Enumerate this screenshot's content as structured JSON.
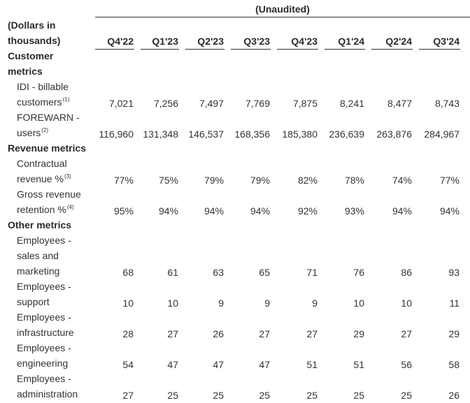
{
  "unaudited_label": "(Unaudited)",
  "corner_label": [
    "(Dollars in",
    "thousands)"
  ],
  "periods": [
    "Q4'22",
    "Q1'23",
    "Q2'23",
    "Q3'23",
    "Q4'23",
    "Q1'24",
    "Q2'24",
    "Q3'24"
  ],
  "sections": [
    {
      "title": [
        "Customer",
        "metrics"
      ],
      "rows": [
        {
          "label": [
            "IDI - billable",
            "customers"
          ],
          "footnote": "(1)",
          "values": [
            "7,021",
            "7,256",
            "7,497",
            "7,769",
            "7,875",
            "8,241",
            "8,477",
            "8,743"
          ]
        },
        {
          "label": [
            "FOREWARN -",
            "users"
          ],
          "footnote": "(2)",
          "values": [
            "116,960",
            "131,348",
            "146,537",
            "168,356",
            "185,380",
            "236,639",
            "263,876",
            "284,967"
          ]
        }
      ]
    },
    {
      "title": [
        "Revenue metrics"
      ],
      "rows": [
        {
          "label": [
            "Contractual",
            "revenue %"
          ],
          "footnote": "(3)",
          "values": [
            "77%",
            "75%",
            "79%",
            "79%",
            "82%",
            "78%",
            "74%",
            "77%"
          ]
        },
        {
          "label": [
            "Gross revenue",
            "retention %"
          ],
          "footnote": "(4)",
          "values": [
            "95%",
            "94%",
            "94%",
            "94%",
            "92%",
            "93%",
            "94%",
            "94%"
          ]
        }
      ]
    },
    {
      "title": [
        "Other metrics"
      ],
      "rows": [
        {
          "label": [
            "Employees -",
            "sales and",
            "marketing"
          ],
          "footnote": "",
          "values": [
            "68",
            "61",
            "63",
            "65",
            "71",
            "76",
            "86",
            "93"
          ]
        },
        {
          "label": [
            "Employees -",
            "support"
          ],
          "footnote": "",
          "values": [
            "10",
            "10",
            "9",
            "9",
            "9",
            "10",
            "10",
            "11"
          ]
        },
        {
          "label": [
            "Employees -",
            "infrastructure"
          ],
          "footnote": "",
          "values": [
            "28",
            "27",
            "26",
            "27",
            "27",
            "29",
            "27",
            "29"
          ]
        },
        {
          "label": [
            "Employees -",
            "engineering"
          ],
          "footnote": "",
          "values": [
            "54",
            "47",
            "47",
            "47",
            "51",
            "51",
            "56",
            "58"
          ]
        },
        {
          "label": [
            "Employees -",
            "administration"
          ],
          "footnote": "",
          "values": [
            "27",
            "25",
            "25",
            "25",
            "25",
            "25",
            "25",
            "26"
          ]
        }
      ]
    }
  ],
  "colors": {
    "text": "#333333",
    "heading": "#2a2a2a",
    "rule": "#333333"
  }
}
